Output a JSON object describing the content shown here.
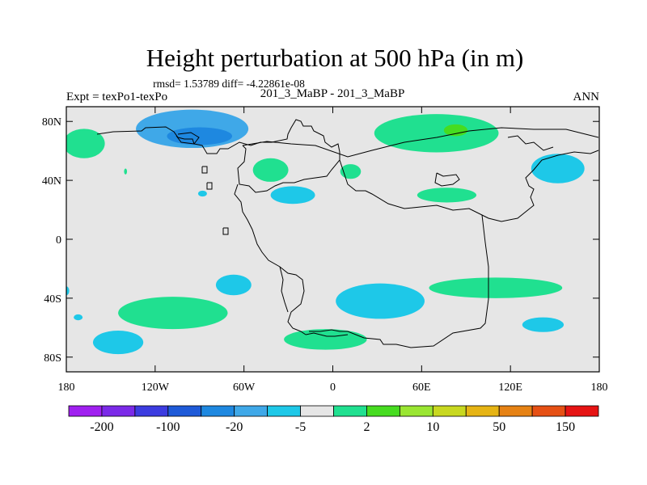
{
  "chart_data": {
    "type": "heatmap",
    "title": "Height perturbation at 500 hPa (in m)",
    "stats": "rmsd= 1.53789 diff= -4.22861e-08",
    "left_label": "Expt = texPo1-texPo",
    "center_label": "201_3_MaBP - 201_3_MaBP",
    "right_label": "ANN",
    "lon_range": [
      -180,
      180
    ],
    "lat_range": [
      -90,
      90
    ],
    "x_ticks": [
      {
        "value": -180,
        "label": "180"
      },
      {
        "value": -120,
        "label": "120W"
      },
      {
        "value": -60,
        "label": "60W"
      },
      {
        "value": 0,
        "label": "0"
      },
      {
        "value": 60,
        "label": "60E"
      },
      {
        "value": 120,
        "label": "120E"
      },
      {
        "value": 180,
        "label": "180"
      }
    ],
    "y_ticks": [
      {
        "value": 80,
        "label": "80N"
      },
      {
        "value": 40,
        "label": "40N"
      },
      {
        "value": 0,
        "label": "0"
      },
      {
        "value": -40,
        "label": "40S"
      },
      {
        "value": -80,
        "label": "80S"
      }
    ],
    "colorbar": {
      "colors": [
        "#a020f0",
        "#7b2ae8",
        "#3c3ce0",
        "#1e5ad8",
        "#1e88e0",
        "#3fa8e8",
        "#1ec8e8",
        "#e6e6e6",
        "#20e090",
        "#46dc20",
        "#9ae632",
        "#c8d820",
        "#e6b414",
        "#e68214",
        "#e65014",
        "#e61414"
      ],
      "labels": [
        {
          "index": 1,
          "text": "-200"
        },
        {
          "index": 3,
          "text": "-100"
        },
        {
          "index": 5,
          "text": "-20"
        },
        {
          "index": 7,
          "text": "-5"
        },
        {
          "index": 9,
          "text": "2"
        },
        {
          "index": 11,
          "text": "10"
        },
        {
          "index": 13,
          "text": "50"
        },
        {
          "index": 15,
          "text": "150"
        }
      ]
    },
    "background_color": "#e6e6e6",
    "features": [
      {
        "color": "#3fa8e8",
        "lon": -95,
        "lat": 75,
        "rx": 38,
        "ry": 13
      },
      {
        "color": "#1e88e0",
        "lon": -90,
        "lat": 70,
        "rx": 22,
        "ry": 6
      },
      {
        "color": "#20e090",
        "lon": -168,
        "lat": 65,
        "rx": 14,
        "ry": 10
      },
      {
        "color": "#20e090",
        "lon": -42,
        "lat": 47,
        "rx": 12,
        "ry": 8
      },
      {
        "color": "#1ec8e8",
        "lon": -27,
        "lat": 30,
        "rx": 15,
        "ry": 6
      },
      {
        "color": "#1ec8e8",
        "lon": -88,
        "lat": 31,
        "rx": 3,
        "ry": 2
      },
      {
        "color": "#20e090",
        "lon": -140,
        "lat": 46,
        "rx": 1,
        "ry": 2
      },
      {
        "color": "#20e090",
        "lon": 70,
        "lat": 72,
        "rx": 42,
        "ry": 13
      },
      {
        "color": "#46dc20",
        "lon": 83,
        "lat": 74,
        "rx": 8,
        "ry": 4
      },
      {
        "color": "#20e090",
        "lon": 12,
        "lat": 46,
        "rx": 7,
        "ry": 5
      },
      {
        "color": "#20e090",
        "lon": 77,
        "lat": 30,
        "rx": 20,
        "ry": 5
      },
      {
        "color": "#1ec8e8",
        "lon": 152,
        "lat": 48,
        "rx": 18,
        "ry": 10
      },
      {
        "color": "#20e090",
        "lon": 110,
        "lat": -33,
        "rx": 45,
        "ry": 7
      },
      {
        "color": "#1ec8e8",
        "lon": 32,
        "lat": -42,
        "rx": 30,
        "ry": 12
      },
      {
        "color": "#1ec8e8",
        "lon": -67,
        "lat": -31,
        "rx": 12,
        "ry": 7
      },
      {
        "color": "#20e090",
        "lon": -108,
        "lat": -50,
        "rx": 37,
        "ry": 11
      },
      {
        "color": "#1ec8e8",
        "lon": -145,
        "lat": -70,
        "rx": 17,
        "ry": 8
      },
      {
        "color": "#20e090",
        "lon": -5,
        "lat": -68,
        "rx": 28,
        "ry": 7
      },
      {
        "color": "#1ec8e8",
        "lon": 142,
        "lat": -58,
        "rx": 14,
        "ry": 5
      },
      {
        "color": "#1ec8e8",
        "lon": -172,
        "lat": -53,
        "rx": 3,
        "ry": 2
      },
      {
        "color": "#1ec8e8",
        "lon": -180,
        "lat": -35,
        "rx": 2,
        "ry": 3
      }
    ]
  }
}
